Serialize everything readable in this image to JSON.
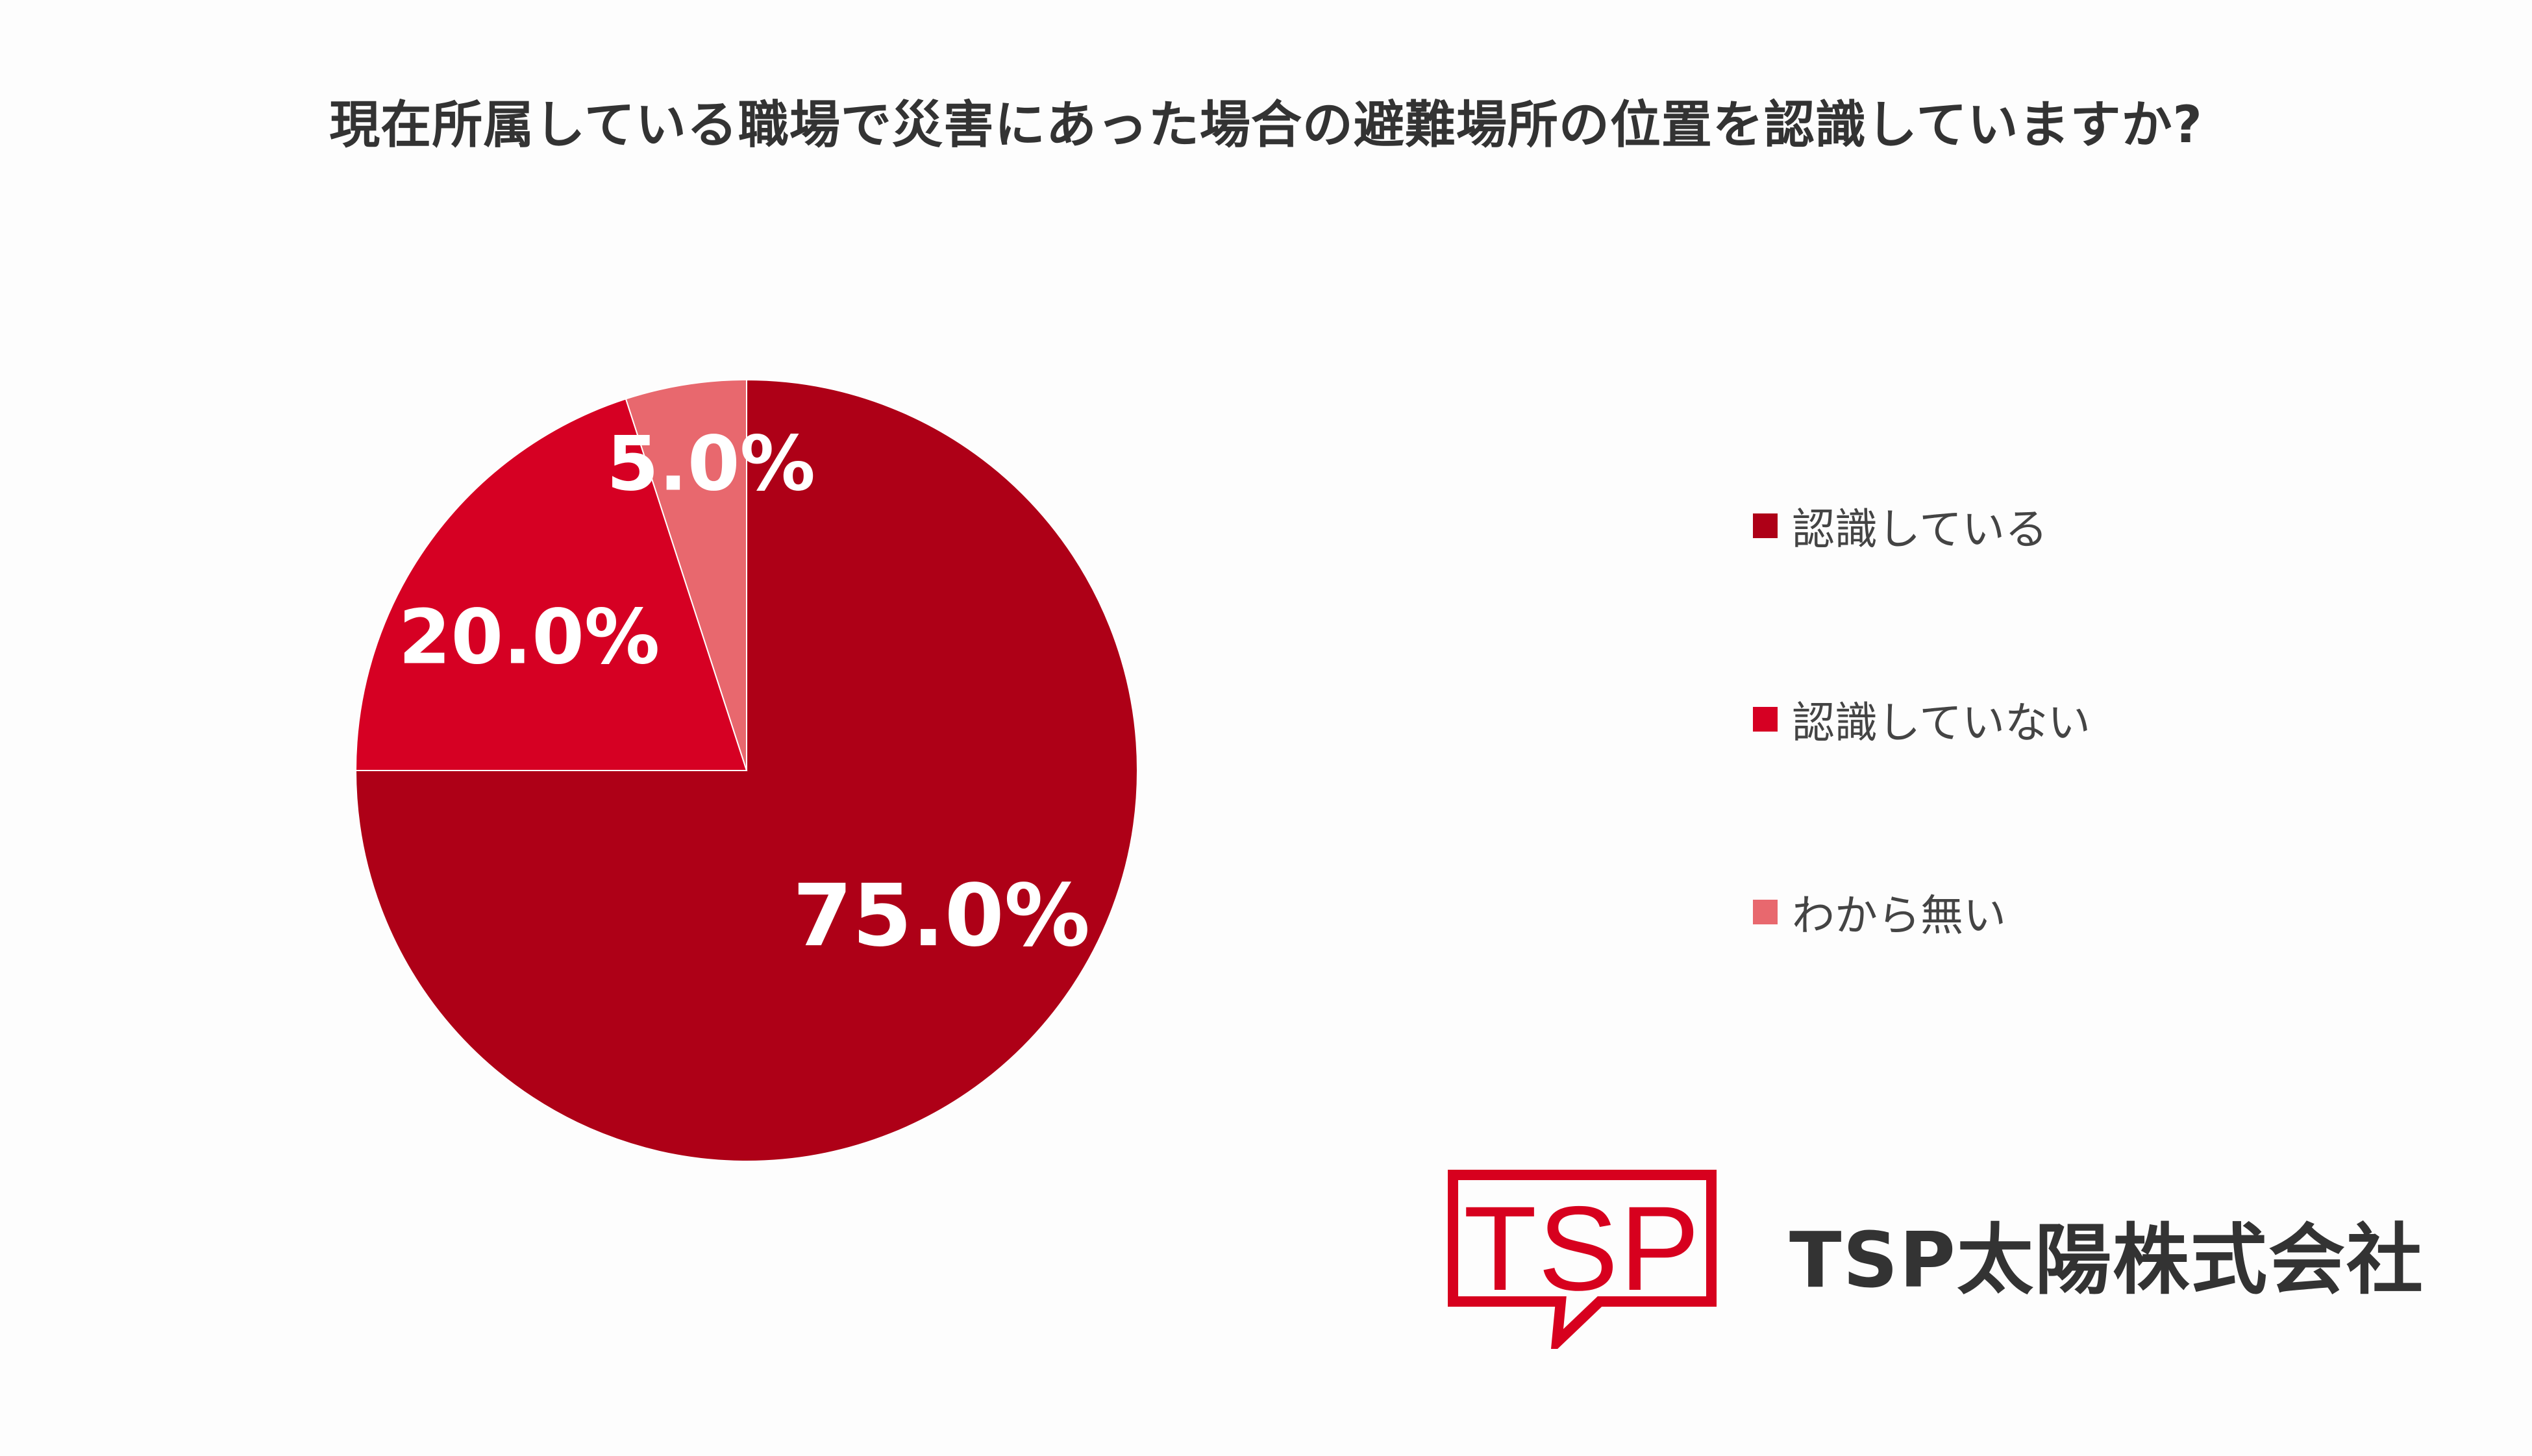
{
  "chart_data": {
    "type": "pie",
    "title": "現在所属している職場で災害にあった場合の避難場所の位置を認識していますか?",
    "slices": [
      {
        "label": "認識している",
        "value": 75.0,
        "display": "75.0%",
        "color": "#ae0017"
      },
      {
        "label": "認識していない",
        "value": 20.0,
        "display": "20.0%",
        "color": "#d60023"
      },
      {
        "label": "わから無い",
        "value": 5.0,
        "display": "5.0%",
        "color": "#e8686e"
      }
    ],
    "start_angle": "12 o'clock",
    "direction": "clockwise",
    "legend_position": "right"
  },
  "logo": {
    "text": "TSP",
    "color": "#d7001e"
  },
  "company_name": "TSP太陽株式会社"
}
